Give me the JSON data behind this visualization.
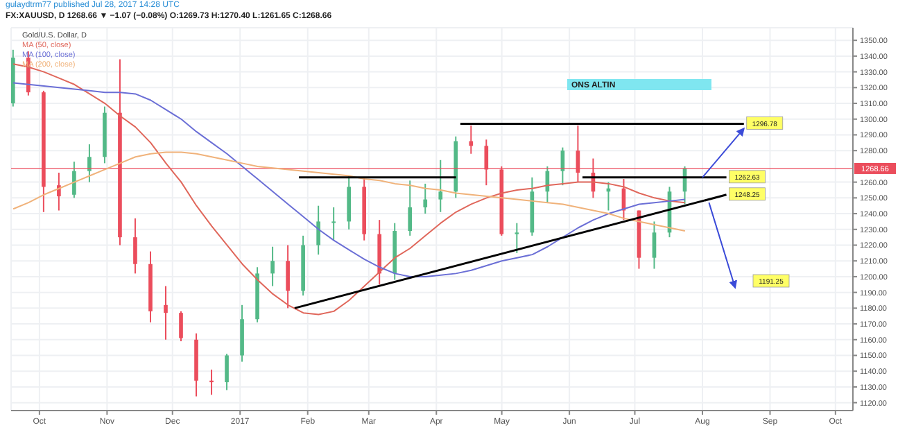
{
  "chart_data": {
    "type": "candlestick",
    "subtitle": "gulaydtrm77 published Jul 28, 2017 14:28 UTC",
    "title": "FX:XAUUSD, D 1268.66 ▼ −1.07 (−0.08%) O:1269.73 H:1270.40 L:1261.65 C:1268.66",
    "legend_title": "Gold/U.S. Dollar, D",
    "x": [
      "2016-09-19",
      "2016-09-26",
      "2016-10-03",
      "2016-10-10",
      "2016-10-17",
      "2016-10-24",
      "2016-10-31",
      "2016-11-07",
      "2016-11-14",
      "2016-11-21",
      "2016-11-28",
      "2016-12-05",
      "2016-12-12",
      "2016-12-19",
      "2016-12-26",
      "2017-01-02",
      "2017-01-09",
      "2017-01-16",
      "2017-01-23",
      "2017-01-30",
      "2017-02-06",
      "2017-02-13",
      "2017-02-20",
      "2017-02-27",
      "2017-03-06",
      "2017-03-13",
      "2017-03-20",
      "2017-03-27",
      "2017-04-03",
      "2017-04-10",
      "2017-04-17",
      "2017-04-24",
      "2017-05-01",
      "2017-05-08",
      "2017-05-15",
      "2017-05-22",
      "2017-05-29",
      "2017-06-05",
      "2017-06-12",
      "2017-06-19",
      "2017-06-26",
      "2017-07-03",
      "2017-07-10",
      "2017-07-17",
      "2017-07-24"
    ],
    "ohlc": [
      [
        1310,
        1344,
        1308,
        1339
      ],
      [
        1339,
        1343,
        1315,
        1317
      ],
      [
        1317,
        1318,
        1241,
        1257
      ],
      [
        1258,
        1266,
        1242,
        1251
      ],
      [
        1252,
        1273,
        1250,
        1267
      ],
      [
        1267,
        1284,
        1260,
        1276
      ],
      [
        1276,
        1308,
        1272,
        1304
      ],
      [
        1304,
        1338,
        1220,
        1225
      ],
      [
        1225,
        1237,
        1202,
        1208
      ],
      [
        1208,
        1216,
        1171,
        1178
      ],
      [
        1182,
        1194,
        1160,
        1177
      ],
      [
        1177,
        1178,
        1159,
        1161
      ],
      [
        1160,
        1164,
        1124,
        1134
      ],
      [
        1134,
        1141,
        1125,
        1133
      ],
      [
        1133,
        1151,
        1128,
        1150
      ],
      [
        1150,
        1182,
        1146,
        1173
      ],
      [
        1173,
        1206,
        1171,
        1202
      ],
      [
        1202,
        1219,
        1194,
        1210
      ],
      [
        1210,
        1220,
        1180,
        1191
      ],
      [
        1191,
        1226,
        1188,
        1220
      ],
      [
        1220,
        1245,
        1214,
        1235
      ],
      [
        1235,
        1244,
        1223,
        1235
      ],
      [
        1235,
        1264,
        1230,
        1257
      ],
      [
        1257,
        1263,
        1223,
        1227
      ],
      [
        1227,
        1236,
        1195,
        1202
      ],
      [
        1202,
        1234,
        1198,
        1229
      ],
      [
        1229,
        1261,
        1226,
        1244
      ],
      [
        1244,
        1259,
        1240,
        1249
      ],
      [
        1249,
        1274,
        1241,
        1254
      ],
      [
        1254,
        1289,
        1250,
        1286
      ],
      [
        1286,
        1296,
        1278,
        1283
      ],
      [
        1283,
        1287,
        1258,
        1268
      ],
      [
        1268,
        1270,
        1226,
        1227
      ],
      [
        1227,
        1234,
        1215,
        1228
      ],
      [
        1228,
        1263,
        1226,
        1254
      ],
      [
        1254,
        1270,
        1247,
        1267
      ],
      [
        1267,
        1282,
        1258,
        1280
      ],
      [
        1280,
        1296,
        1260,
        1266
      ],
      [
        1266,
        1275,
        1250,
        1254
      ],
      [
        1254,
        1260,
        1242,
        1256
      ],
      [
        1256,
        1262,
        1236,
        1242
      ],
      [
        1242,
        1242,
        1205,
        1212
      ],
      [
        1212,
        1235,
        1205,
        1228
      ],
      [
        1228,
        1257,
        1225,
        1254
      ],
      [
        1254,
        1270,
        1246,
        1268.66
      ]
    ],
    "series": [
      {
        "name": "MA (50, close)",
        "type": "line",
        "color": "#e0675b",
        "values": [
          1335,
          1333,
          1330,
          1326,
          1322,
          1316,
          1310,
          1302,
          1295,
          1285,
          1272,
          1260,
          1245,
          1232,
          1220,
          1208,
          1198,
          1189,
          1182,
          1177,
          1176,
          1178,
          1185,
          1194,
          1203,
          1212,
          1218,
          1226,
          1234,
          1241,
          1246,
          1250,
          1253,
          1255,
          1256,
          1258,
          1259,
          1260,
          1260,
          1259,
          1257,
          1253,
          1250,
          1248,
          1247
        ]
      },
      {
        "name": "MA (100, close)",
        "type": "line",
        "color": "#6b6fd6",
        "values": [
          1323,
          1322,
          1321,
          1320,
          1319,
          1318,
          1317,
          1317,
          1316,
          1312,
          1306,
          1300,
          1292,
          1285,
          1278,
          1270,
          1262,
          1254,
          1246,
          1238,
          1230,
          1223,
          1217,
          1211,
          1206,
          1202,
          1200,
          1200,
          1201,
          1202,
          1204,
          1207,
          1210,
          1212,
          1214,
          1219,
          1225,
          1231,
          1236,
          1240,
          1243,
          1246,
          1247,
          1248,
          1249
        ]
      },
      {
        "name": "MA (200, close)",
        "type": "line",
        "color": "#f0b27a",
        "values": [
          1243,
          1247,
          1252,
          1256,
          1260,
          1264,
          1268,
          1272,
          1276,
          1278,
          1279,
          1279,
          1278,
          1276,
          1274,
          1272,
          1270,
          1269,
          1268,
          1267,
          1266,
          1265,
          1264,
          1262,
          1261,
          1259,
          1258,
          1256,
          1255,
          1253,
          1252,
          1251,
          1250,
          1249,
          1248,
          1247,
          1246,
          1244,
          1242,
          1240,
          1237,
          1235,
          1233,
          1231,
          1229
        ]
      },
      {
        "type": "line",
        "color": "#000000",
        "x": [
          "2017-04-12",
          "2017-08-20"
        ],
        "values": [
          1297,
          1297
        ]
      },
      {
        "type": "line",
        "color": "#000000",
        "x": [
          "2017-01-28",
          "2017-04-10"
        ],
        "values": [
          1263,
          1263
        ]
      },
      {
        "type": "line",
        "color": "#000000",
        "x": [
          "2017-06-07",
          "2017-08-12"
        ],
        "values": [
          1263,
          1263
        ]
      },
      {
        "type": "line",
        "color": "#000000",
        "x": [
          "2017-01-26",
          "2017-08-12"
        ],
        "values": [
          1180,
          1252
        ]
      }
    ],
    "annotations": [
      "ONS ALTIN",
      {
        "text": "1296.78",
        "x": "2017-08-20",
        "y": 1297
      },
      {
        "text": "1262.63",
        "x": "2017-08-12",
        "y": 1263
      },
      {
        "text": "1248.25",
        "x": "2017-08-12",
        "y": 1252
      },
      "1191.25"
    ],
    "ref_lines": [
      {
        "axis": "y",
        "value": 1268.66,
        "label": "1268.66",
        "color": "#eb4d5c"
      }
    ],
    "xlim": [
      "2016-09-18",
      "2017-10-09"
    ],
    "xticks": [
      {
        "value": "2016-10-01",
        "label": "Oct"
      },
      {
        "value": "2016-11-01",
        "label": "Nov"
      },
      {
        "value": "2016-12-01",
        "label": "Dec"
      },
      {
        "value": "2017-01-01",
        "label": "2017"
      },
      {
        "value": "2017-02-01",
        "label": "Feb"
      },
      {
        "value": "2017-03-01",
        "label": "Mar"
      },
      {
        "value": "2017-04-01",
        "label": "Apr"
      },
      {
        "value": "2017-05-01",
        "label": "May"
      },
      {
        "value": "2017-06-01",
        "label": "Jun"
      },
      {
        "value": "2017-07-01",
        "label": "Jul"
      },
      {
        "value": "2017-08-01",
        "label": "Aug"
      },
      {
        "value": "2017-09-01",
        "label": "Sep"
      },
      {
        "value": "2017-10-01",
        "label": "Oct"
      }
    ],
    "ylim": [
      1115,
      1358
    ],
    "yticks": [
      {
        "value": 1120,
        "label": "1120.00"
      },
      {
        "value": 1130,
        "label": "1130.00"
      },
      {
        "value": 1140,
        "label": "1140.00"
      },
      {
        "value": 1150,
        "label": "1150.00"
      },
      {
        "value": 1160,
        "label": "1160.00"
      },
      {
        "value": 1170,
        "label": "1170.00"
      },
      {
        "value": 1180,
        "label": "1180.00"
      },
      {
        "value": 1190,
        "label": "1190.00"
      },
      {
        "value": 1200,
        "label": "1200.00"
      },
      {
        "value": 1210,
        "label": "1210.00"
      },
      {
        "value": 1220,
        "label": "1220.00"
      },
      {
        "value": 1230,
        "label": "1230.00"
      },
      {
        "value": 1240,
        "label": "1240.00"
      },
      {
        "value": 1250,
        "label": "1250.00"
      },
      {
        "value": 1260,
        "label": "1260.00"
      },
      {
        "value": 1280,
        "label": "1280.00"
      },
      {
        "value": 1290,
        "label": "1290.00"
      },
      {
        "value": 1300,
        "label": "1300.00"
      },
      {
        "value": 1310,
        "label": "1310.00"
      },
      {
        "value": 1320,
        "label": "1320.00"
      },
      {
        "value": 1330,
        "label": "1330.00"
      },
      {
        "value": 1340,
        "label": "1340.00"
      },
      {
        "value": 1350,
        "label": "1350.00"
      }
    ],
    "grid": true,
    "legend": "top left"
  }
}
